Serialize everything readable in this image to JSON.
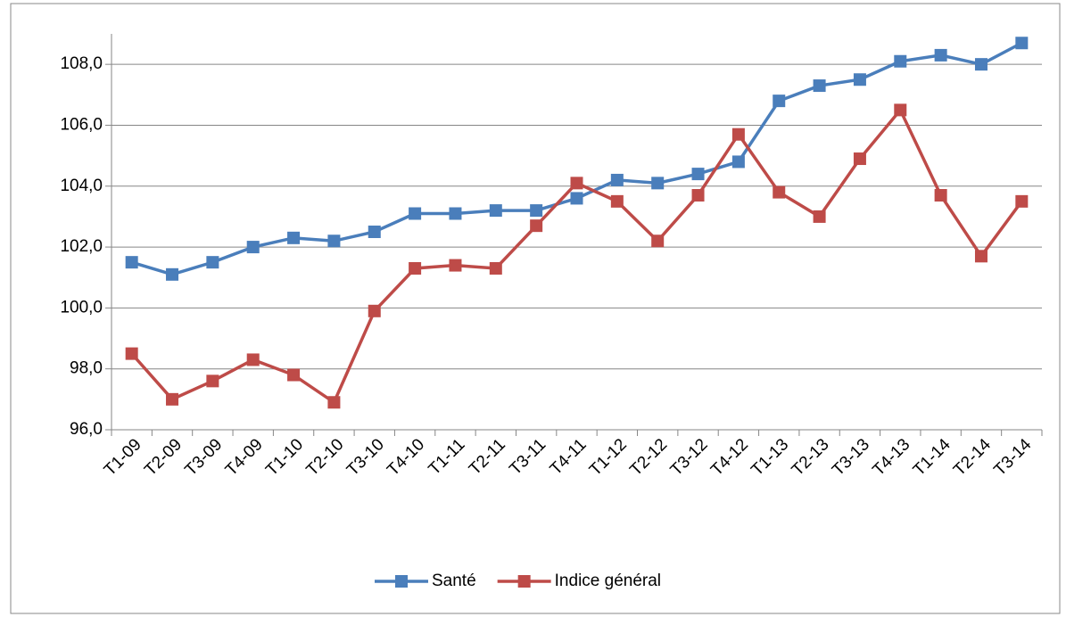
{
  "chart_data": {
    "type": "line",
    "categories": [
      "T1-09",
      "T2-09",
      "T3-09",
      "T4-09",
      "T1-10",
      "T2-10",
      "T3-10",
      "T4-10",
      "T1-11",
      "T2-11",
      "T3-11",
      "T4-11",
      "T1-12",
      "T2-12",
      "T3-12",
      "T4-12",
      "T1-13",
      "T2-13",
      "T3-13",
      "T4-13",
      "T1-14",
      "T2-14",
      "T3-14"
    ],
    "series": [
      {
        "name": "Santé",
        "color": "#4a7ebb",
        "values": [
          101.5,
          101.1,
          101.5,
          102.0,
          102.3,
          102.2,
          102.5,
          103.1,
          103.1,
          103.2,
          103.2,
          103.6,
          104.2,
          104.1,
          104.4,
          104.8,
          106.8,
          107.3,
          107.5,
          108.1,
          108.3,
          108.0,
          108.7
        ]
      },
      {
        "name": "Indice général",
        "color": "#be4b48",
        "values": [
          98.5,
          97.0,
          97.6,
          98.3,
          97.8,
          96.9,
          99.9,
          101.3,
          101.4,
          101.3,
          102.7,
          104.1,
          103.5,
          102.2,
          103.7,
          105.7,
          103.8,
          103.0,
          104.9,
          106.5,
          103.7,
          101.7,
          103.5
        ]
      }
    ],
    "ylim": [
      96,
      109
    ],
    "yticks": [
      {
        "value": 96,
        "label": "96,0"
      },
      {
        "value": 98,
        "label": "98,0"
      },
      {
        "value": 100,
        "label": "100,0"
      },
      {
        "value": 102,
        "label": "102,0"
      },
      {
        "value": 104,
        "label": "104,0"
      },
      {
        "value": 106,
        "label": "106,0"
      },
      {
        "value": 108,
        "label": "108,0"
      }
    ],
    "grid": true,
    "legend": "bottom"
  }
}
